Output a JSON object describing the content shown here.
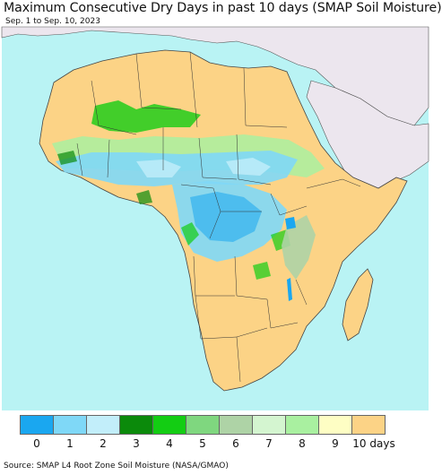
{
  "header": {
    "title": "Maximum Consecutive Dry Days in past 10 days (SMAP Soil Moisture)",
    "subtitle": "Sep. 1 to Sep. 10, 2023"
  },
  "legend": {
    "items": [
      {
        "label": "0",
        "color": "#1aa7f0"
      },
      {
        "label": "1",
        "color": "#7fd8f7"
      },
      {
        "label": "2",
        "color": "#c2eefa"
      },
      {
        "label": "3",
        "color": "#0b8a0b"
      },
      {
        "label": "4",
        "color": "#13cd13"
      },
      {
        "label": "5",
        "color": "#7fd77f"
      },
      {
        "label": "6",
        "color": "#aed3a6"
      },
      {
        "label": "7",
        "color": "#d4f5d0"
      },
      {
        "label": "8",
        "color": "#a9f0a0"
      },
      {
        "label": "9",
        "color": "#fefec4"
      },
      {
        "label": "10 days",
        "color": "#fcd386"
      }
    ]
  },
  "map": {
    "ocean_color": "#b9f3f4",
    "land_dry_color": "#fcd386",
    "outside_color": "#ece6ee",
    "madagascar_label": ""
  },
  "footer": {
    "source": "Source: SMAP L4 Root Zone Soil Moisture (NASA/GMAO)"
  }
}
